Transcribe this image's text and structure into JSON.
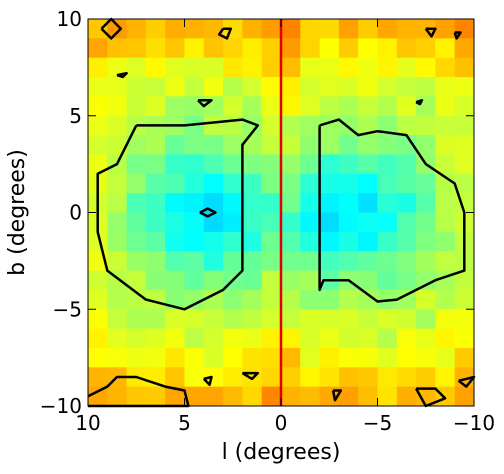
{
  "chart_data": {
    "type": "heatmap",
    "title": "",
    "xlabel": "l (degrees)",
    "ylabel": "b (degrees)",
    "xlim": [
      10,
      -10
    ],
    "ylim": [
      -10,
      10
    ],
    "x_reversed": true,
    "xticks": [
      10,
      5,
      0,
      -5,
      -10
    ],
    "xtick_labels": [
      "10",
      "5",
      "0",
      "−5",
      "−10"
    ],
    "yticks": [
      -10,
      -5,
      0,
      5,
      10
    ],
    "ytick_labels": [
      "−10",
      "−5",
      "0",
      "5",
      "10"
    ],
    "grid": false,
    "legend": "none",
    "colormap": "jet",
    "colors": {
      "low": "#0a78ff",
      "mid": "#14e6f0",
      "high": "#a0ff50",
      "vline": "#e00000",
      "contour": "#000000"
    },
    "vertical_line": {
      "x": 0,
      "color": "#e00000"
    },
    "heatmap_description": "Binned map (20 x 20 cells, 1 degree each) with low density lobes centred near (l=4,b=0) and (l=-4,b=0), higher values towards the edges.",
    "lobes": [
      {
        "l_center": 4,
        "b_center": 0
      },
      {
        "l_center": -4,
        "b_center": 0
      }
    ],
    "contours": [
      {
        "name": "left-lobe",
        "points": [
          [
            7.5,
            4.5
          ],
          [
            5,
            4.5
          ],
          [
            2,
            4.8
          ],
          [
            1.2,
            4.5
          ],
          [
            2,
            3.5
          ],
          [
            2,
            1
          ],
          [
            2,
            -3
          ],
          [
            3,
            -4
          ],
          [
            5,
            -5
          ],
          [
            7,
            -4.5
          ],
          [
            9,
            -3
          ],
          [
            9.5,
            -1
          ],
          [
            9.5,
            2
          ],
          [
            8.5,
            2.5
          ],
          [
            7.5,
            4.5
          ]
        ]
      },
      {
        "name": "right-lobe",
        "points": [
          [
            -2,
            4.5
          ],
          [
            -3,
            4.8
          ],
          [
            -4,
            4
          ],
          [
            -5,
            4.2
          ],
          [
            -6.5,
            4
          ],
          [
            -7.5,
            2.5
          ],
          [
            -9,
            1.5
          ],
          [
            -9.5,
            0
          ],
          [
            -9.5,
            -3
          ],
          [
            -8,
            -3.5
          ],
          [
            -6,
            -4.5
          ],
          [
            -5,
            -4.6
          ],
          [
            -3.5,
            -3.5
          ],
          [
            -2.2,
            -3.5
          ],
          [
            -2,
            -4
          ],
          [
            -2,
            4.5
          ]
        ]
      },
      {
        "name": "center-dot-left",
        "points": [
          [
            4.2,
            0
          ],
          [
            3.8,
            0.2
          ],
          [
            3.4,
            0
          ],
          [
            3.8,
            -0.2
          ],
          [
            4.2,
            0
          ]
        ]
      },
      {
        "name": "blob-top-left",
        "points": [
          [
            9.3,
            9.5
          ],
          [
            8.8,
            9
          ],
          [
            8.3,
            9.5
          ],
          [
            8.8,
            10
          ],
          [
            9.3,
            9.5
          ]
        ]
      },
      {
        "name": "blob-top-mid",
        "points": [
          [
            3,
            9.5
          ],
          [
            3.2,
            9.2
          ],
          [
            2.8,
            9
          ],
          [
            2.6,
            9.5
          ],
          [
            3,
            9.5
          ]
        ]
      },
      {
        "name": "blob-left-7",
        "points": [
          [
            8.5,
            7.1
          ],
          [
            8.2,
            7
          ],
          [
            8,
            7.2
          ],
          [
            8.5,
            7.1
          ]
        ]
      },
      {
        "name": "blob-left-6",
        "points": [
          [
            4.3,
            5.8
          ],
          [
            4,
            5.5
          ],
          [
            3.6,
            5.8
          ],
          [
            4.3,
            5.8
          ]
        ]
      },
      {
        "name": "blob-top-right-1",
        "points": [
          [
            -7.5,
            9.5
          ],
          [
            -7.8,
            9.1
          ],
          [
            -8,
            9.5
          ],
          [
            -7.5,
            9.5
          ]
        ]
      },
      {
        "name": "blob-top-right-2",
        "points": [
          [
            -9,
            9.3
          ],
          [
            -9.1,
            9
          ],
          [
            -9.3,
            9.3
          ],
          [
            -9,
            9.3
          ]
        ]
      },
      {
        "name": "blob-right-6",
        "points": [
          [
            -7,
            5.7
          ],
          [
            -7.2,
            5.6
          ],
          [
            -7.3,
            5.8
          ],
          [
            -7,
            5.7
          ]
        ]
      },
      {
        "name": "blob-bottom-left",
        "points": [
          [
            10,
            -9.5
          ],
          [
            9,
            -9
          ],
          [
            8.5,
            -8.5
          ],
          [
            7.5,
            -8.5
          ],
          [
            6,
            -9
          ],
          [
            5,
            -9.2
          ],
          [
            4.8,
            -10
          ],
          [
            10,
            -10
          ]
        ]
      },
      {
        "name": "blob-bottom-mid-1",
        "points": [
          [
            4,
            -8.6
          ],
          [
            3.7,
            -8.9
          ],
          [
            3.6,
            -8.5
          ],
          [
            4,
            -8.6
          ]
        ]
      },
      {
        "name": "blob-bottom-mid-2",
        "points": [
          [
            2,
            -8.3
          ],
          [
            1.5,
            -8.6
          ],
          [
            1.2,
            -8.3
          ],
          [
            2,
            -8.3
          ]
        ]
      },
      {
        "name": "blob-bottom-right-1",
        "points": [
          [
            -2.7,
            -9.2
          ],
          [
            -2.8,
            -9.7
          ],
          [
            -3.1,
            -9.2
          ],
          [
            -2.7,
            -9.2
          ]
        ]
      },
      {
        "name": "blob-bottom-right-2",
        "points": [
          [
            -7,
            -9.1
          ],
          [
            -8,
            -9.1
          ],
          [
            -8.5,
            -9.6
          ],
          [
            -7.5,
            -10
          ],
          [
            -7,
            -9.1
          ]
        ]
      },
      {
        "name": "blob-bottom-right-3",
        "points": [
          [
            -9.2,
            -8.7
          ],
          [
            -9.6,
            -9
          ],
          [
            -10,
            -8.5
          ],
          [
            -9.2,
            -8.7
          ]
        ]
      }
    ]
  }
}
